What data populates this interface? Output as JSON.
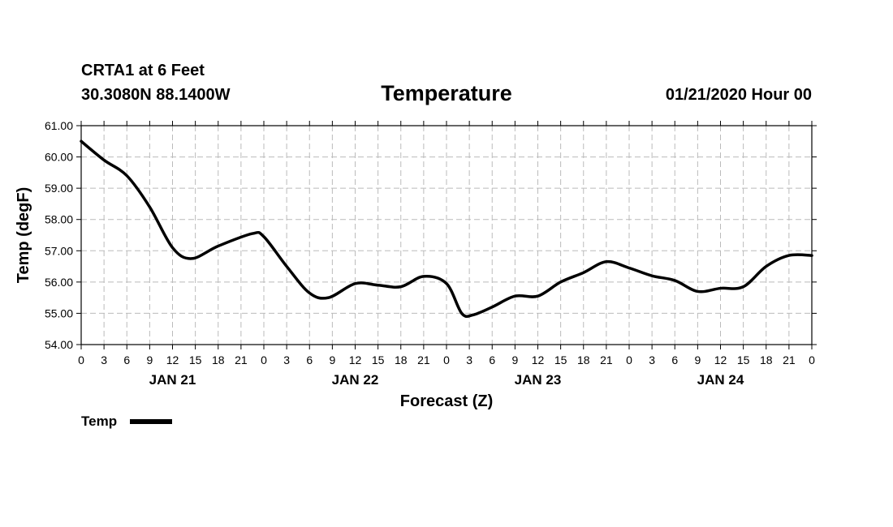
{
  "header": {
    "station": "CRTA1 at 6 Feet",
    "coords": "30.3080N 88.1400W",
    "title": "Temperature",
    "run": "01/21/2020 Hour 00"
  },
  "chart_data": {
    "type": "line",
    "title": "Temperature",
    "xlabel": "Forecast (Z)",
    "ylabel": "Temp (degF)",
    "ylim": [
      54.0,
      61.0
    ],
    "xlim": [
      0,
      96
    ],
    "grid": true,
    "y_ticks": [
      "54.00",
      "55.00",
      "56.00",
      "57.00",
      "58.00",
      "59.00",
      "60.00",
      "61.00"
    ],
    "x_tick_labels": [
      "0",
      "3",
      "6",
      "9",
      "12",
      "15",
      "18",
      "21",
      "0",
      "3",
      "6",
      "9",
      "12",
      "15",
      "18",
      "21",
      "0",
      "3",
      "6",
      "9",
      "12",
      "15",
      "18",
      "21",
      "0",
      "3",
      "6",
      "9",
      "12",
      "15",
      "18",
      "21",
      "0"
    ],
    "day_labels": [
      {
        "label": "JAN 21",
        "hour": 12
      },
      {
        "label": "JAN 22",
        "hour": 36
      },
      {
        "label": "JAN 23",
        "hour": 60
      },
      {
        "label": "JAN 24",
        "hour": 84
      }
    ],
    "legend": {
      "position": "bottom-left",
      "entries": [
        "Temp"
      ]
    },
    "series": [
      {
        "name": "Temp",
        "color": "#000000",
        "x": [
          0,
          3,
          6,
          9,
          12,
          14.5,
          18,
          22.5,
          24,
          27,
          30,
          32.5,
          36,
          39,
          42,
          45,
          48,
          50,
          51.5,
          54,
          57,
          60,
          63,
          66,
          69,
          72,
          75,
          78,
          81,
          84,
          87,
          90,
          93,
          96
        ],
        "y": [
          60.5,
          59.9,
          59.4,
          58.4,
          57.1,
          56.75,
          57.15,
          57.55,
          57.45,
          56.5,
          55.65,
          55.5,
          55.95,
          55.9,
          55.85,
          56.18,
          55.95,
          55.0,
          54.95,
          55.2,
          55.55,
          55.55,
          56.0,
          56.3,
          56.65,
          56.45,
          56.2,
          56.05,
          55.7,
          55.8,
          55.85,
          56.5,
          56.85,
          56.85
        ]
      }
    ]
  }
}
